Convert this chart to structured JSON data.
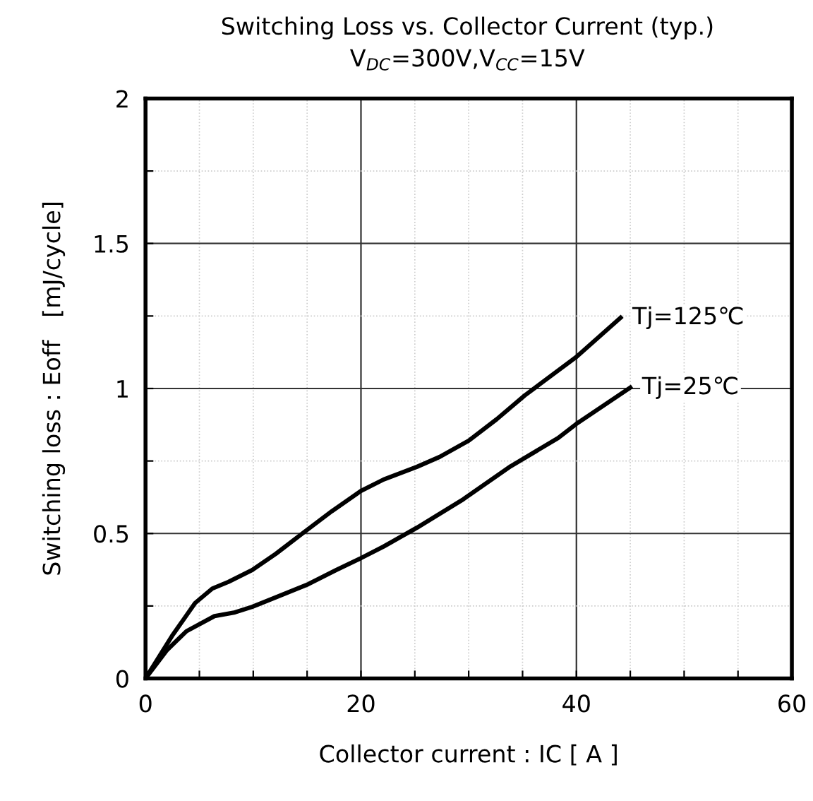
{
  "chart_data": {
    "type": "line",
    "title": "Switching Loss vs. Collector Current (typ.)",
    "subtitle": "V$_{DC}$=300V,V$_{CC}$=15V",
    "xlabel": "Collector current : IC [ A ]",
    "ylabel": "Switching loss : Eoff   [mJ/cycle]",
    "series": [
      {
        "color": "#000000",
        "x": [
          0,
          2.45,
          4.6,
          6.2,
          7.7,
          9.9,
          12.1,
          14.7,
          17.3,
          20,
          22.1,
          25.2,
          27.3,
          30,
          32.6,
          35.2,
          40,
          44.1
        ],
        "values": [
          0,
          0.146,
          0.26,
          0.31,
          0.333,
          0.374,
          0.43,
          0.504,
          0.577,
          0.647,
          0.686,
          0.73,
          0.764,
          0.82,
          0.894,
          0.976,
          1.109,
          1.244
        ]
      },
      {
        "color": "#000000",
        "x": [
          0,
          2,
          3.8,
          6.4,
          8.3,
          9.9,
          12.1,
          15.1,
          17.7,
          20,
          22.1,
          25.2,
          29.5,
          33.9,
          38.3,
          40,
          45
        ],
        "values": [
          0,
          0.098,
          0.163,
          0.215,
          0.228,
          0.247,
          0.28,
          0.325,
          0.374,
          0.415,
          0.455,
          0.52,
          0.618,
          0.732,
          0.829,
          0.878,
          1.003
        ]
      }
    ],
    "annotations": [
      {
        "text": "Tj=125℃",
        "x": 44.1,
        "y": 1.244
      },
      {
        "text": "Tj=25℃",
        "x": 45,
        "y": 1.003
      }
    ],
    "xlim": [
      0,
      60
    ],
    "xticks": [
      0,
      {
        "value": 5,
        "label": null
      },
      {
        "value": 10,
        "label": null
      },
      {
        "value": 15,
        "label": null
      },
      20,
      {
        "value": 25,
        "label": null
      },
      {
        "value": 30,
        "label": null
      },
      {
        "value": 35,
        "label": null
      },
      40,
      {
        "value": 45,
        "label": null
      },
      {
        "value": 50,
        "label": null
      },
      {
        "value": 55,
        "label": null
      },
      60
    ],
    "ylim": [
      0,
      2
    ],
    "yticks": [
      0,
      {
        "value": 0.25,
        "label": null
      },
      0.5,
      {
        "value": 0.75,
        "label": null
      },
      1,
      {
        "value": 1.25,
        "label": null
      },
      1.5,
      {
        "value": 1.75,
        "label": null
      },
      2
    ],
    "grid": true,
    "legend": false,
    "marker": "none",
    "line_style": "solid"
  }
}
